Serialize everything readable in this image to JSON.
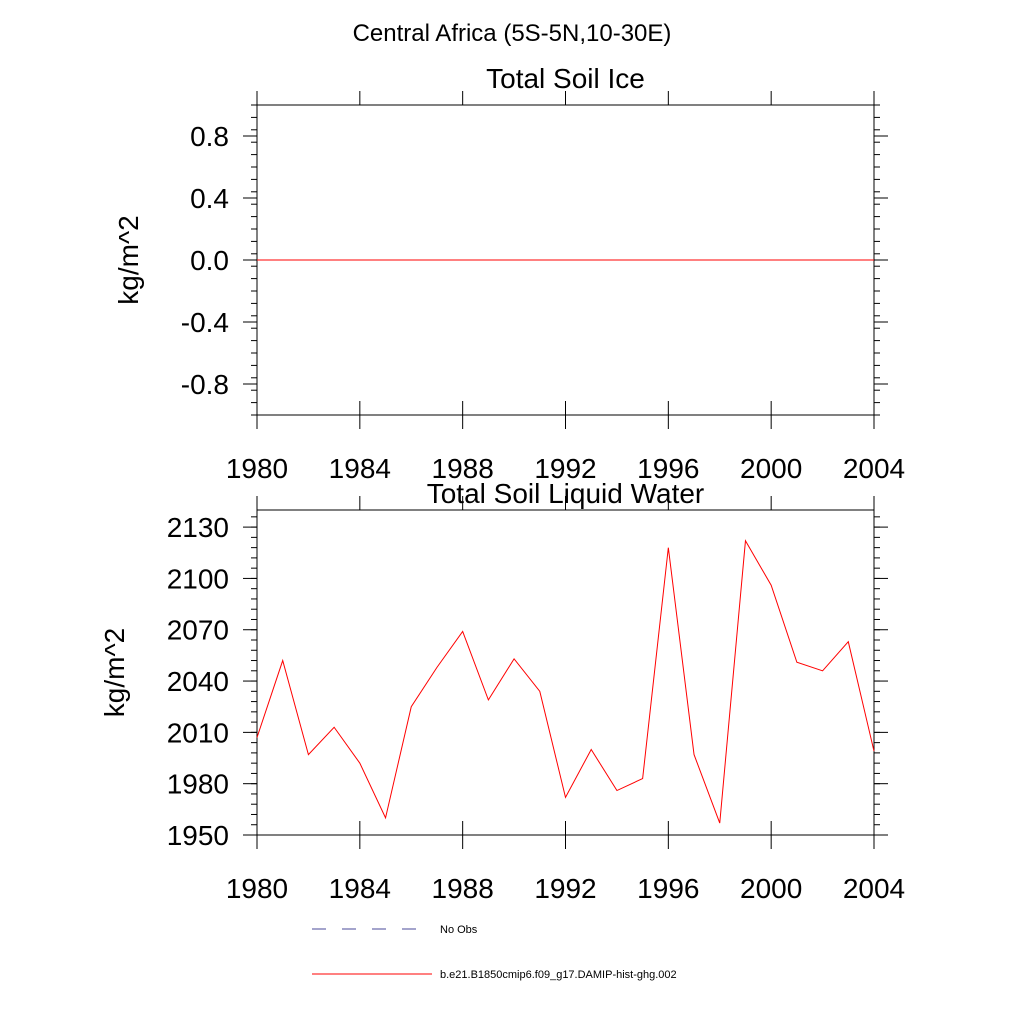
{
  "figure": {
    "main_title": "Central Africa (5S-5N,10-30E)"
  },
  "legend": [
    {
      "label": "No Obs",
      "style": "dashed",
      "color": "#4a4a9a"
    },
    {
      "label": "b.e21.B1850cmip6.f09_g17.DAMIP-hist-ghg.002",
      "style": "solid",
      "color": "#ff0000"
    }
  ],
  "chart_data": [
    {
      "type": "line",
      "title": "Total Soil Ice",
      "xlabel": "",
      "ylabel": "kg/m^2",
      "xlim": [
        1980,
        2004
      ],
      "ylim": [
        -1.0,
        1.0
      ],
      "x_ticks": [
        1980,
        1984,
        1988,
        1992,
        1996,
        2000,
        2004
      ],
      "x_tick_labels": [
        "1980",
        "1984",
        "1988",
        "1992",
        "1996",
        "2000",
        "2004"
      ],
      "y_ticks": [
        -0.8,
        -0.4,
        0.0,
        0.4,
        0.8
      ],
      "y_tick_labels": [
        "-0.8",
        "-0.4",
        "0.0",
        "0.4",
        "0.8"
      ],
      "grid": false,
      "series": [
        {
          "name": "b.e21.B1850cmip6.f09_g17.DAMIP-hist-ghg.002",
          "color": "#ff0000",
          "x": [
            1980,
            1981,
            1982,
            1983,
            1984,
            1985,
            1986,
            1987,
            1988,
            1989,
            1990,
            1991,
            1992,
            1993,
            1994,
            1995,
            1996,
            1997,
            1998,
            1999,
            2000,
            2001,
            2002,
            2003,
            2004
          ],
          "values": [
            0,
            0,
            0,
            0,
            0,
            0,
            0,
            0,
            0,
            0,
            0,
            0,
            0,
            0,
            0,
            0,
            0,
            0,
            0,
            0,
            0,
            0,
            0,
            0,
            0
          ]
        }
      ]
    },
    {
      "type": "line",
      "title": "Total Soil Liquid Water",
      "xlabel": "",
      "ylabel": "kg/m^2",
      "xlim": [
        1980,
        2004
      ],
      "ylim": [
        1950,
        2140
      ],
      "x_ticks": [
        1980,
        1984,
        1988,
        1992,
        1996,
        2000,
        2004
      ],
      "x_tick_labels": [
        "1980",
        "1984",
        "1988",
        "1992",
        "1996",
        "2000",
        "2004"
      ],
      "y_ticks": [
        1950,
        1980,
        2010,
        2040,
        2070,
        2100,
        2130
      ],
      "y_tick_labels": [
        "1950",
        "1980",
        "2010",
        "2040",
        "2070",
        "2100",
        "2130"
      ],
      "grid": false,
      "series": [
        {
          "name": "b.e21.B1850cmip6.f09_g17.DAMIP-hist-ghg.002",
          "color": "#ff0000",
          "x": [
            1980,
            1981,
            1982,
            1983,
            1984,
            1985,
            1986,
            1987,
            1988,
            1989,
            1990,
            1991,
            1992,
            1993,
            1994,
            1995,
            1996,
            1997,
            1998,
            1999,
            2000,
            2001,
            2002,
            2003,
            2004
          ],
          "values": [
            2007,
            2052,
            1997,
            2013,
            1992,
            1960,
            2025,
            2048,
            2069,
            2029,
            2053,
            2034,
            1972,
            2000,
            1976,
            1983,
            2118,
            1997,
            1957,
            2122,
            2096,
            2051,
            2046,
            2063,
            1999
          ]
        }
      ]
    }
  ]
}
